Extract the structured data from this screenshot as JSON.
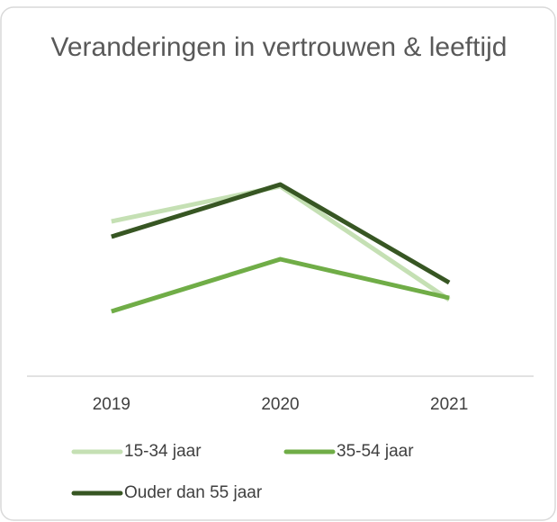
{
  "chart_data": {
    "type": "line",
    "title": "Veranderingen in vertrouwen & leeftijd",
    "categories": [
      "2019",
      "2020",
      "2021"
    ],
    "series": [
      {
        "name": "15-34 jaar",
        "color": "#c5e0b4",
        "values": [
          172,
          211,
          85
        ]
      },
      {
        "name": "35-54 jaar",
        "color": "#70ad47",
        "values": [
          72,
          130,
          87
        ]
      },
      {
        "name": "Ouder dan 55 jaar",
        "color": "#375623",
        "values": [
          155,
          213,
          104
        ]
      }
    ],
    "ylim": [
      0,
      228
    ],
    "grid": false,
    "legend": "bottom"
  }
}
